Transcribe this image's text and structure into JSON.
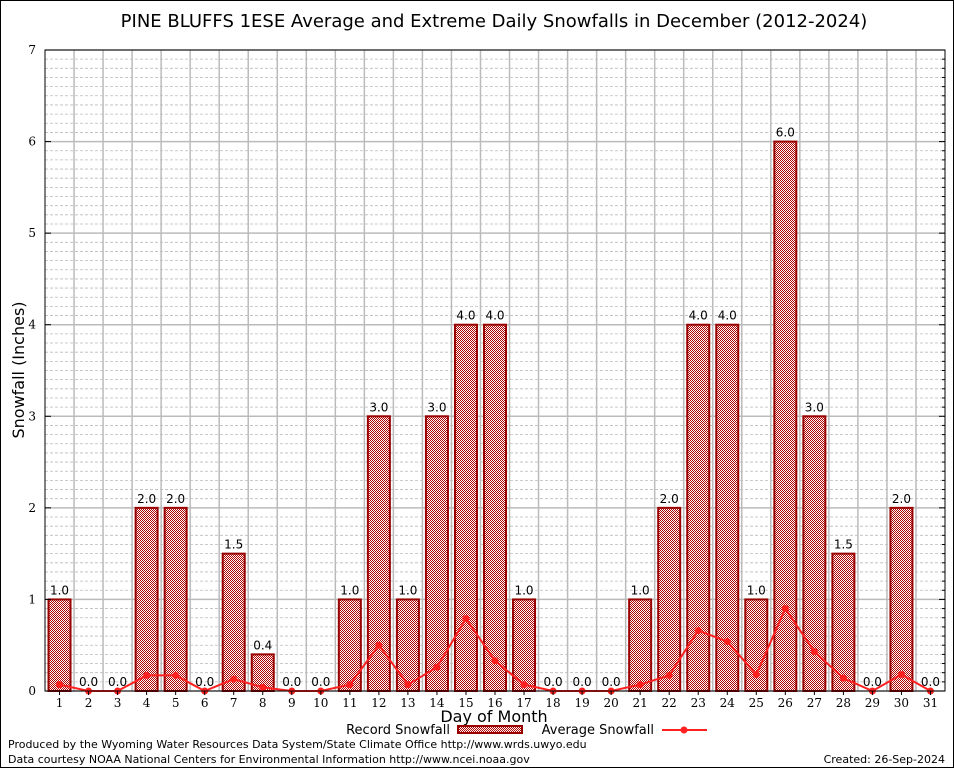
{
  "chart_data": {
    "type": "bar",
    "title": "PINE BLUFFS 1ESE Average and Extreme Daily Snowfalls in December (2012-2024)",
    "xlabel": "Day of Month",
    "ylabel": "Snowfall (Inches)",
    "ylim": [
      0,
      7
    ],
    "yticks": [
      "0",
      "1",
      "2",
      "3",
      "4",
      "5",
      "6",
      "7"
    ],
    "categories": [
      "1",
      "2",
      "3",
      "4",
      "5",
      "6",
      "7",
      "8",
      "9",
      "10",
      "11",
      "12",
      "13",
      "14",
      "15",
      "16",
      "17",
      "18",
      "19",
      "20",
      "21",
      "22",
      "23",
      "24",
      "25",
      "26",
      "27",
      "28",
      "29",
      "30",
      "31"
    ],
    "grid": true,
    "legend_position": "bottom-center",
    "series": [
      {
        "name": "Record Snowfall",
        "type": "bar",
        "color": "#cc0000",
        "values": [
          1.0,
          0.0,
          0.0,
          2.0,
          2.0,
          0.0,
          1.5,
          0.4,
          0.0,
          0.0,
          1.0,
          3.0,
          1.0,
          3.0,
          4.0,
          4.0,
          1.0,
          0.0,
          0.0,
          0.0,
          1.0,
          2.0,
          4.0,
          4.0,
          1.0,
          6.0,
          3.0,
          1.5,
          0.0,
          2.0,
          0.0
        ],
        "labels": [
          "1.0",
          "0.0",
          "0.0",
          "2.0",
          "2.0",
          "0.0",
          "1.5",
          "0.4",
          "0.0",
          "0.0",
          "1.0",
          "3.0",
          "1.0",
          "3.0",
          "4.0",
          "4.0",
          "1.0",
          "0.0",
          "0.0",
          "0.0",
          "1.0",
          "2.0",
          "4.0",
          "4.0",
          "1.0",
          "6.0",
          "3.0",
          "1.5",
          "0.0",
          "2.0",
          "0.0"
        ]
      },
      {
        "name": "Average Snowfall",
        "type": "line",
        "color": "#ff2020",
        "values": [
          0.07,
          0.0,
          0.0,
          0.17,
          0.17,
          0.0,
          0.13,
          0.04,
          0.0,
          0.0,
          0.07,
          0.5,
          0.07,
          0.26,
          0.79,
          0.33,
          0.07,
          0.0,
          0.0,
          0.0,
          0.07,
          0.17,
          0.66,
          0.54,
          0.18,
          0.9,
          0.43,
          0.14,
          0.0,
          0.18,
          0.0
        ]
      }
    ]
  },
  "footer": {
    "produced_by": "Produced by the Wyoming Water Resources Data System/State Climate Office http://www.wrds.uwyo.edu",
    "data_courtesy": "Data courtesy NOAA National Centers for Environmental Information http://www.ncei.noaa.gov",
    "created": "Created: 26-Sep-2024"
  }
}
